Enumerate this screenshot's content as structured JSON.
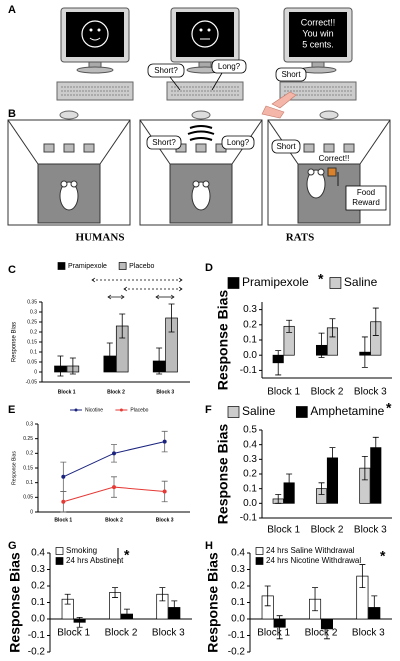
{
  "figure": {
    "panel_labels": [
      "A",
      "B"
    ],
    "headings": [
      "HUMANS",
      "RATS"
    ],
    "panel_a": {
      "screen": [
        "Correct!!",
        "You win",
        "5 cents."
      ],
      "bubbles": [
        "Short?",
        "Long?",
        "Short"
      ]
    },
    "panel_b": {
      "bubbles": [
        "Short?",
        "Long?",
        "Short",
        "Correct!!"
      ],
      "reward": [
        "Food",
        "Reward"
      ]
    }
  },
  "chart_data": [
    {
      "type": "bar",
      "panel": "C",
      "ylabel": "Response Bias",
      "categories": [
        "Block 1",
        "Block 2",
        "Block 3"
      ],
      "series": [
        {
          "name": "Pramipexole",
          "color": "#000000",
          "values": [
            0.03,
            0.08,
            0.055
          ],
          "errors": [
            0.05,
            0.065,
            0.065
          ]
        },
        {
          "name": "Placebo",
          "color": "#bbbbbb",
          "values": [
            0.03,
            0.23,
            0.27
          ],
          "errors": [
            0.04,
            0.06,
            0.07
          ]
        }
      ],
      "ylim": [
        -0.05,
        0.35
      ],
      "yticks": [
        -0.05,
        0,
        0.05,
        0.1,
        0.15,
        0.2,
        0.25,
        0.3,
        0.35
      ],
      "legend": "top"
    },
    {
      "type": "bar",
      "panel": "D",
      "ylabel": "Response Bias",
      "categories": [
        "Block 1",
        "Block 2",
        "Block 3"
      ],
      "annotation": "*",
      "series": [
        {
          "name": "Pramipexole",
          "color": "#000000",
          "values": [
            -0.05,
            0.065,
            0.02
          ],
          "errors": [
            0.08,
            0.08,
            0.1
          ]
        },
        {
          "name": "Saline",
          "color": "#cccccc",
          "values": [
            0.19,
            0.18,
            0.22
          ],
          "errors": [
            0.04,
            0.06,
            0.09
          ]
        }
      ],
      "ylim": [
        -0.15,
        0.35
      ],
      "yticks": [
        -0.1,
        {
          "value": 0,
          "label": "0.0"
        },
        0.1,
        0.2,
        0.3
      ],
      "legend": "top"
    },
    {
      "type": "line",
      "panel": "E",
      "ylabel": "Response Bias",
      "categories": [
        "Block 1",
        "Block 2",
        "Block 3"
      ],
      "series": [
        {
          "name": "Nicotine",
          "color": "#1a237e",
          "values": [
            0.12,
            0.2,
            0.24
          ],
          "errors": [
            0.05,
            0.03,
            0.035
          ]
        },
        {
          "name": "Placebo",
          "color": "#e53935",
          "values": [
            0.035,
            0.085,
            0.07
          ],
          "errors": [
            0.035,
            0.035,
            0.035
          ]
        }
      ],
      "ylim": [
        0,
        0.3
      ],
      "yticks": [
        0,
        0.05,
        0.1,
        0.15,
        0.2,
        0.25,
        0.3
      ],
      "legend": "top"
    },
    {
      "type": "bar",
      "panel": "F",
      "ylabel": "Response Bias",
      "categories": [
        "Block 1",
        "Block 2",
        "Block 3"
      ],
      "annotation": "*",
      "series": [
        {
          "name": "Saline",
          "color": "#cccccc",
          "values": [
            0.03,
            0.1,
            0.24
          ],
          "errors": [
            0.03,
            0.04,
            0.08
          ]
        },
        {
          "name": "Amphetamine",
          "color": "#000000",
          "values": [
            0.14,
            0.31,
            0.38
          ],
          "errors": [
            0.06,
            0.07,
            0.07
          ]
        }
      ],
      "ylim": [
        -0.1,
        0.5
      ],
      "yticks": [
        -0.1,
        {
          "value": 0,
          "label": "0.0"
        },
        0.1,
        0.2,
        0.3,
        0.4,
        0.5
      ],
      "legend": "top"
    },
    {
      "type": "bar",
      "panel": "G",
      "ylabel": "Response Bias",
      "categories": [
        "Block 1",
        "Block 2",
        "Block 3"
      ],
      "annotation": "*",
      "series": [
        {
          "name": "Smoking",
          "color": "#ffffff",
          "values": [
            0.12,
            0.16,
            0.15
          ],
          "errors": [
            0.03,
            0.03,
            0.04
          ]
        },
        {
          "name": "24 hrs Abstinent",
          "color": "#000000",
          "values": [
            -0.02,
            0.03,
            0.07
          ],
          "errors": [
            0.03,
            0.03,
            0.04
          ]
        }
      ],
      "ylim": [
        -0.2,
        0.4
      ],
      "yticks": [
        -0.2,
        -0.1,
        {
          "value": 0,
          "label": "0.0"
        },
        0.1,
        0.2,
        0.3,
        0.4
      ],
      "legend": "upper left"
    },
    {
      "type": "bar",
      "panel": "H",
      "ylabel": "Response Bias",
      "categories": [
        "Block 1",
        "Block 2",
        "Block 3"
      ],
      "annotation": "*",
      "series": [
        {
          "name": "24 hrs Saline Withdrawal",
          "color": "#ffffff",
          "values": [
            0.14,
            0.12,
            0.26
          ],
          "errors": [
            0.06,
            0.07,
            0.07
          ]
        },
        {
          "name": "24 hrs Nicotine Withdrawal",
          "color": "#000000",
          "values": [
            -0.05,
            -0.06,
            0.07
          ],
          "errors": [
            0.07,
            0.06,
            0.07
          ]
        }
      ],
      "ylim": [
        -0.2,
        0.4
      ],
      "yticks": [
        -0.2,
        -0.1,
        {
          "value": 0,
          "label": "0.0"
        },
        0.1,
        0.2,
        0.3,
        0.4
      ],
      "legend": "upper left"
    }
  ]
}
